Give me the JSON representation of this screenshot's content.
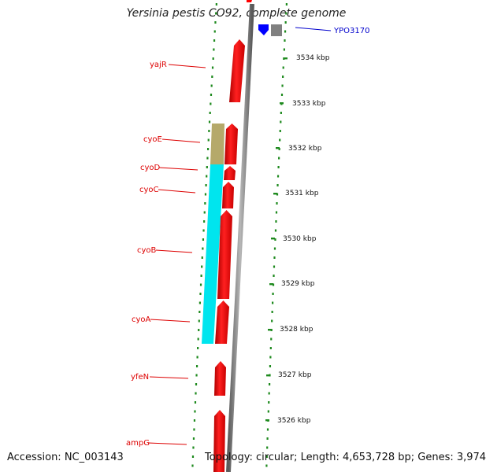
{
  "title": "Yersinia pestis CO92, complete genome",
  "footer": {
    "accession": "Accession: NC_003143",
    "info": "Topology: circular; Length: 4,653,728 bp; Genes: 3,974"
  },
  "colors": {
    "gene_forward": "#ff0000",
    "operon_cyo_upper": "#b5a96a",
    "operon_cyo_lower": "#00e5ee",
    "backbone": "#8c8c8c",
    "tick_marks": "#1e8a1e",
    "gene_labels": "#dd0000",
    "highlight_label": "#0000cc",
    "highlight_gene": "#0000ff",
    "other_gene": "#808080"
  },
  "kbp_labels": [
    "3534 kbp",
    "3533 kbp",
    "3532 kbp",
    "3531 kbp",
    "3530 kbp",
    "3529 kbp",
    "3528 kbp",
    "3527 kbp",
    "3526 kbp"
  ],
  "gene_labels": [
    "yajR",
    "cyoE",
    "cyoD",
    "cyoC",
    "cyoB",
    "cyoA",
    "yfeN",
    "ampG"
  ],
  "highlight_label": "YPO3170"
}
